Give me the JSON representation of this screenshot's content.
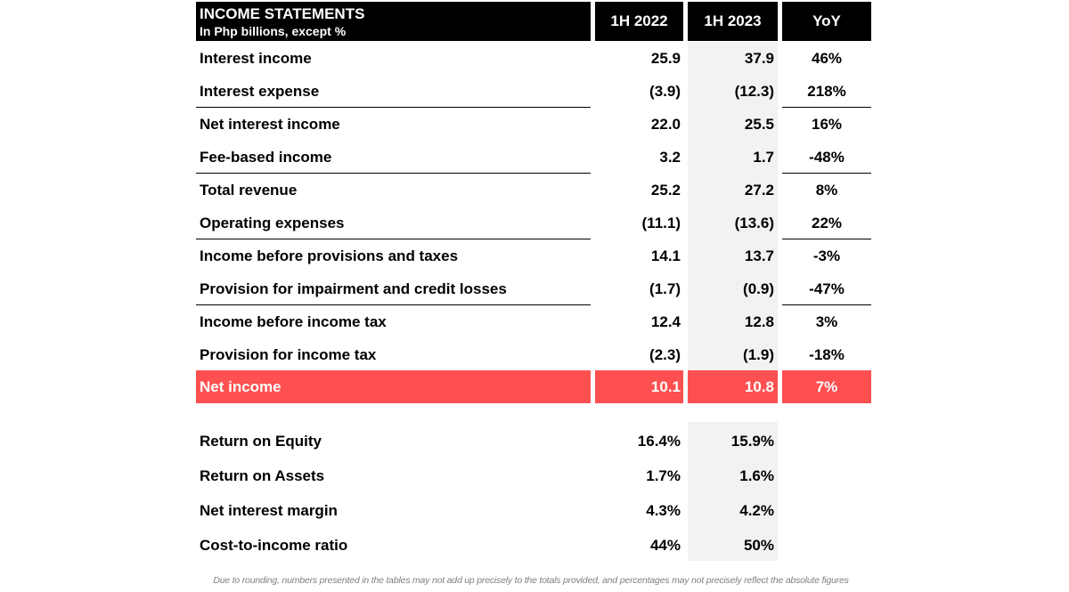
{
  "header": {
    "title": "INCOME STATEMENTS",
    "subtitle": "In Php billions, except %",
    "columns": [
      "1H 2022",
      "1H 2023",
      "YoY"
    ]
  },
  "rows": [
    {
      "label": "Interest income",
      "h1_2022": "25.9",
      "h1_2023": "37.9",
      "yoy": "46%"
    },
    {
      "label": "Interest expense",
      "h1_2022": "(3.9)",
      "h1_2023": "(12.3)",
      "yoy": "218%"
    },
    {
      "label": "Net interest income",
      "h1_2022": "22.0",
      "h1_2023": "25.5",
      "yoy": "16%"
    },
    {
      "label": "Fee-based income",
      "h1_2022": "3.2",
      "h1_2023": "1.7",
      "yoy": "-48%"
    },
    {
      "label": "Total revenue",
      "h1_2022": "25.2",
      "h1_2023": "27.2",
      "yoy": "8%"
    },
    {
      "label": "Operating expenses",
      "h1_2022": "(11.1)",
      "h1_2023": "(13.6)",
      "yoy": "22%"
    },
    {
      "label": "Income before provisions and taxes",
      "h1_2022": "14.1",
      "h1_2023": "13.7",
      "yoy": "-3%"
    },
    {
      "label": "Provision for impairment and credit losses",
      "h1_2022": "(1.7)",
      "h1_2023": "(0.9)",
      "yoy": "-47%"
    },
    {
      "label": "Income before income tax",
      "h1_2022": "12.4",
      "h1_2023": "12.8",
      "yoy": "3%"
    },
    {
      "label": "Provision for income tax",
      "h1_2022": "(2.3)",
      "h1_2023": "(1.9)",
      "yoy": "-18%"
    }
  ],
  "net_income": {
    "label": "Net income",
    "h1_2022": "10.1",
    "h1_2023": "10.8",
    "yoy": "7%"
  },
  "ratios": [
    {
      "label": "Return on Equity",
      "h1_2022": "16.4%",
      "h1_2023": "15.9%"
    },
    {
      "label": "Return on Assets",
      "h1_2022": "1.7%",
      "h1_2023": "1.6%"
    },
    {
      "label": "Net interest margin",
      "h1_2022": "4.3%",
      "h1_2023": "4.2%"
    },
    {
      "label": "Cost-to-income ratio",
      "h1_2022": "44%",
      "h1_2023": "50%"
    }
  ],
  "colors": {
    "header_bg": "#000000",
    "highlight": "#fe5050",
    "shade": "#f2f2f2"
  },
  "footnote": "Due to rounding, numbers presented in the tables may not add up precisely to the totals provided, and percentages may not precisely reflect the absolute figures"
}
